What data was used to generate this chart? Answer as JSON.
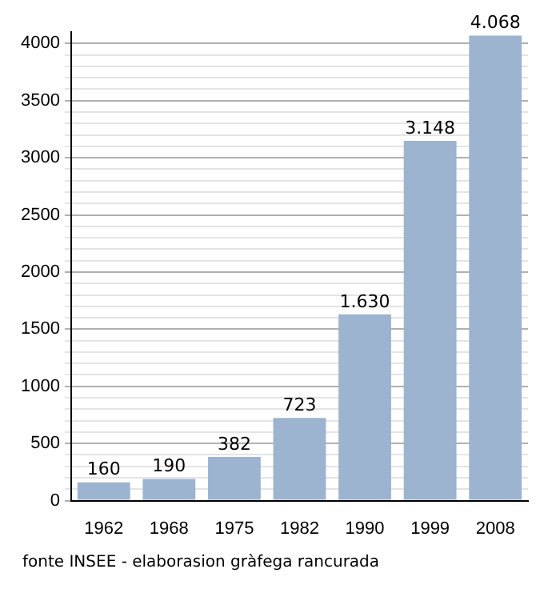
{
  "chart_data": {
    "type": "bar",
    "categories": [
      "1962",
      "1968",
      "1975",
      "1982",
      "1990",
      "1999",
      "2008"
    ],
    "values": [
      160,
      190,
      382,
      723,
      1630,
      3148,
      4068
    ],
    "value_labels": [
      "160",
      "190",
      "382",
      "723",
      "1.630",
      "3.148",
      "4.068"
    ],
    "color": "#9db4d0",
    "ylim": [
      0,
      4100
    ],
    "yticks": [
      0,
      {
        "value": 100,
        "label": null
      },
      {
        "value": 200,
        "label": null
      },
      {
        "value": 300,
        "label": null
      },
      {
        "value": 400,
        "label": null
      },
      500,
      {
        "value": 600,
        "label": null
      },
      {
        "value": 700,
        "label": null
      },
      {
        "value": 800,
        "label": null
      },
      {
        "value": 900,
        "label": null
      },
      1000,
      {
        "value": 1100,
        "label": null
      },
      {
        "value": 1200,
        "label": null
      },
      {
        "value": 1300,
        "label": null
      },
      {
        "value": 1400,
        "label": null
      },
      1500,
      {
        "value": 1600,
        "label": null
      },
      {
        "value": 1700,
        "label": null
      },
      {
        "value": 1800,
        "label": null
      },
      {
        "value": 1900,
        "label": null
      },
      2000,
      {
        "value": 2100,
        "label": null
      },
      {
        "value": 2200,
        "label": null
      },
      {
        "value": 2300,
        "label": null
      },
      {
        "value": 2400,
        "label": null
      },
      2500,
      {
        "value": 2600,
        "label": null
      },
      {
        "value": 2700,
        "label": null
      },
      {
        "value": 2800,
        "label": null
      },
      {
        "value": 2900,
        "label": null
      },
      3000,
      {
        "value": 3100,
        "label": null
      },
      {
        "value": 3200,
        "label": null
      },
      {
        "value": 3300,
        "label": null
      },
      {
        "value": 3400,
        "label": null
      },
      3500,
      {
        "value": 3600,
        "label": null
      },
      {
        "value": 3700,
        "label": null
      },
      {
        "value": 3800,
        "label": null
      },
      {
        "value": 3900,
        "label": null
      },
      4000
    ],
    "grid": "y",
    "legend": false,
    "annotations": [
      "fonte INSEE - elaborasion gràfega rancurada"
    ]
  }
}
